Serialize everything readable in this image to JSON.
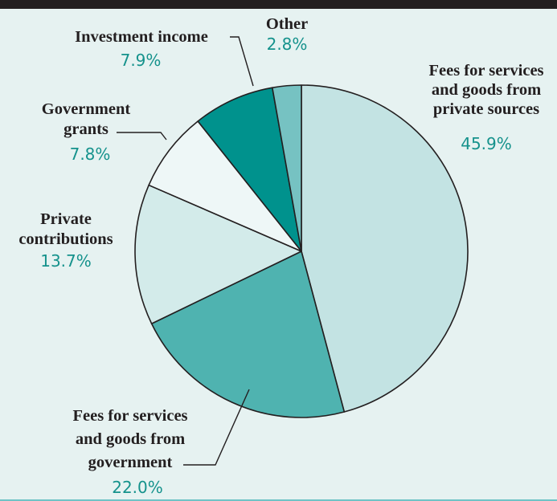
{
  "chart_data": {
    "type": "pie",
    "title": "",
    "start": "12 o'clock, clockwise",
    "slices": [
      {
        "name": "Fees for services and goods from private sources",
        "lines": [
          "Fees for services",
          "and goods from",
          "private sources"
        ],
        "value": 45.9,
        "label": "45.9%",
        "color": "#c3e3e3"
      },
      {
        "name": "Fees for services and goods from government",
        "lines": [
          "Fees for services",
          "and goods from",
          "government"
        ],
        "value": 22.0,
        "label": "22.0%",
        "color": "#4fb3b0"
      },
      {
        "name": "Private contributions",
        "lines": [
          "Private",
          "contributions"
        ],
        "value": 13.7,
        "label": "13.7%",
        "color": "#d3ebea"
      },
      {
        "name": "Government grants",
        "lines": [
          "Government",
          "grants"
        ],
        "value": 7.8,
        "label": "7.8%",
        "color": "#eef7f7"
      },
      {
        "name": "Investment income",
        "lines": [
          "Investment income"
        ],
        "value": 7.9,
        "label": "7.9%",
        "color": "#00928d"
      },
      {
        "name": "Other",
        "lines": [
          "Other"
        ],
        "value": 2.8,
        "label": "2.8%",
        "color": "#76c2c2"
      }
    ],
    "legend": "none",
    "colors": {
      "background": "#e6f2f1",
      "top_bar": "#231f20",
      "percent_text": "#15928c",
      "slice_outline": "#231f20"
    }
  }
}
